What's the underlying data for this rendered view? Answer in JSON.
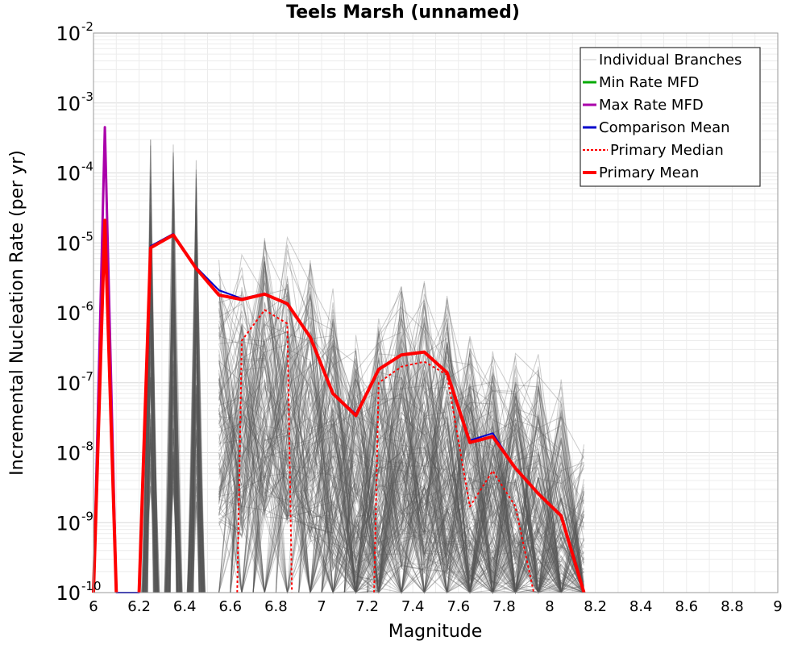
{
  "chart_data": {
    "type": "line",
    "title": "Teels Marsh (unnamed)",
    "xlabel": "Magnitude",
    "ylabel": "Incremental Nucleation Rate (per yr)",
    "xlim": [
      6,
      9
    ],
    "ylim": [
      1e-10,
      0.01
    ],
    "yscale": "log",
    "grid": true,
    "legend_position": "top-right",
    "x_ticks": [
      "6",
      "6.2",
      "6.4",
      "6.6",
      "6.8",
      "7",
      "7.2",
      "7.4",
      "7.6",
      "7.8",
      "8",
      "8.2",
      "8.4",
      "8.6",
      "8.8",
      "9"
    ],
    "y_ticks": [
      {
        "base": "10",
        "exp": "-10"
      },
      {
        "base": "10",
        "exp": "-9"
      },
      {
        "base": "10",
        "exp": "-8"
      },
      {
        "base": "10",
        "exp": "-7"
      },
      {
        "base": "10",
        "exp": "-6"
      },
      {
        "base": "10",
        "exp": "-5"
      },
      {
        "base": "10",
        "exp": "-4"
      },
      {
        "base": "10",
        "exp": "-3"
      },
      {
        "base": "10",
        "exp": "-2"
      }
    ],
    "legend": [
      {
        "label": "Individual Branches",
        "color": "#c8c8c8",
        "style": "thin"
      },
      {
        "label": "Min Rate MFD",
        "color": "#00aa00",
        "style": "solid"
      },
      {
        "label": "Max Rate MFD",
        "color": "#aa00aa",
        "style": "solid"
      },
      {
        "label": "Comparison Mean",
        "color": "#0000cc",
        "style": "solid"
      },
      {
        "label": "Primary Median",
        "color": "#ff0000",
        "style": "dotted"
      },
      {
        "label": "Primary Mean",
        "color": "#ff0000",
        "style": "thick"
      }
    ],
    "branch_envelope": {
      "color": "#555555",
      "spikes": [
        {
          "x": 6.25,
          "peak": 0.00032
        },
        {
          "x": 6.35,
          "peak": 0.00028
        },
        {
          "x": 6.45,
          "peak": 0.00016
        }
      ],
      "upper": [
        {
          "x": 6.55,
          "y": 1.4e-05
        },
        {
          "x": 6.65,
          "y": 9e-06
        },
        {
          "x": 6.75,
          "y": 1.6e-05
        },
        {
          "x": 6.85,
          "y": 1.5e-05
        },
        {
          "x": 6.95,
          "y": 8e-06
        },
        {
          "x": 7.05,
          "y": 3e-06
        },
        {
          "x": 7.15,
          "y": 6e-07
        },
        {
          "x": 7.25,
          "y": 1.2e-06
        },
        {
          "x": 7.35,
          "y": 3.5e-06
        },
        {
          "x": 7.45,
          "y": 3e-06
        },
        {
          "x": 7.55,
          "y": 2.5e-06
        },
        {
          "x": 7.65,
          "y": 7e-07
        },
        {
          "x": 7.75,
          "y": 6e-07
        },
        {
          "x": 7.85,
          "y": 4e-07
        },
        {
          "x": 7.95,
          "y": 3e-07
        },
        {
          "x": 8.05,
          "y": 1.5e-07
        },
        {
          "x": 8.15,
          "y": 2e-08
        }
      ]
    },
    "series": [
      {
        "name": "Max Rate MFD",
        "color": "#aa00aa",
        "width": 3,
        "dash": "",
        "points": [
          [
            6.0,
            1e-10
          ],
          [
            6.05,
            0.00045
          ],
          [
            6.1,
            1e-10
          ]
        ]
      },
      {
        "name": "Comparison Mean",
        "color": "#0000cc",
        "width": 2,
        "dash": "",
        "points": [
          [
            6.05,
            2.1e-05
          ],
          [
            6.1,
            1e-10
          ],
          [
            6.2,
            1e-10
          ],
          [
            6.25,
            9e-06
          ],
          [
            6.35,
            1.35e-05
          ],
          [
            6.45,
            4.5e-06
          ],
          [
            6.55,
            2.1e-06
          ],
          [
            6.65,
            1.6e-06
          ],
          [
            6.75,
            1.9e-06
          ],
          [
            6.85,
            1.3e-06
          ],
          [
            6.95,
            4.5e-07
          ],
          [
            7.05,
            7e-08
          ],
          [
            7.15,
            3.6e-08
          ],
          [
            7.25,
            1.6e-07
          ],
          [
            7.35,
            2.5e-07
          ],
          [
            7.45,
            2.7e-07
          ],
          [
            7.55,
            1.4e-07
          ],
          [
            7.65,
            1.5e-08
          ],
          [
            7.75,
            1.9e-08
          ],
          [
            7.85,
            6e-09
          ],
          [
            7.95,
            2.6e-09
          ],
          [
            8.05,
            1.3e-09
          ],
          [
            8.15,
            1e-10
          ]
        ]
      },
      {
        "name": "Primary Median",
        "color": "#ff0000",
        "width": 2,
        "dash": "3,3",
        "points": [
          [
            6.63,
            1e-10
          ],
          [
            6.65,
            4e-07
          ],
          [
            6.75,
            1.1e-06
          ],
          [
            6.85,
            7e-07
          ],
          [
            6.87,
            1e-10
          ]
        ]
      },
      {
        "name": "Primary Median",
        "color": "#ff0000",
        "width": 2,
        "dash": "3,3",
        "points": [
          [
            7.23,
            1e-10
          ],
          [
            7.25,
            1e-07
          ],
          [
            7.35,
            1.7e-07
          ],
          [
            7.45,
            2e-07
          ],
          [
            7.55,
            1.3e-07
          ],
          [
            7.65,
            1.7e-09
          ],
          [
            7.75,
            5.5e-09
          ],
          [
            7.85,
            1.7e-09
          ],
          [
            7.93,
            1e-10
          ]
        ]
      },
      {
        "name": "Primary Mean",
        "color": "#ff0000",
        "width": 4,
        "dash": "",
        "points": [
          [
            6.0,
            1e-10
          ],
          [
            6.05,
            2.1e-05
          ],
          [
            6.1,
            1e-10
          ]
        ]
      },
      {
        "name": "Primary Mean",
        "color": "#ff0000",
        "width": 4,
        "dash": "",
        "points": [
          [
            6.2,
            1e-10
          ],
          [
            6.25,
            8.5e-06
          ],
          [
            6.35,
            1.3e-05
          ],
          [
            6.45,
            4.3e-06
          ],
          [
            6.55,
            1.8e-06
          ],
          [
            6.65,
            1.55e-06
          ],
          [
            6.75,
            1.85e-06
          ],
          [
            6.85,
            1.35e-06
          ],
          [
            6.95,
            4.5e-07
          ],
          [
            7.05,
            7e-08
          ],
          [
            7.15,
            3.4e-08
          ],
          [
            7.25,
            1.55e-07
          ],
          [
            7.35,
            2.5e-07
          ],
          [
            7.45,
            2.75e-07
          ],
          [
            7.55,
            1.4e-07
          ],
          [
            7.65,
            1.4e-08
          ],
          [
            7.75,
            1.7e-08
          ],
          [
            7.85,
            6e-09
          ],
          [
            7.95,
            2.6e-09
          ],
          [
            8.05,
            1.25e-09
          ],
          [
            8.15,
            1e-10
          ]
        ]
      }
    ]
  }
}
